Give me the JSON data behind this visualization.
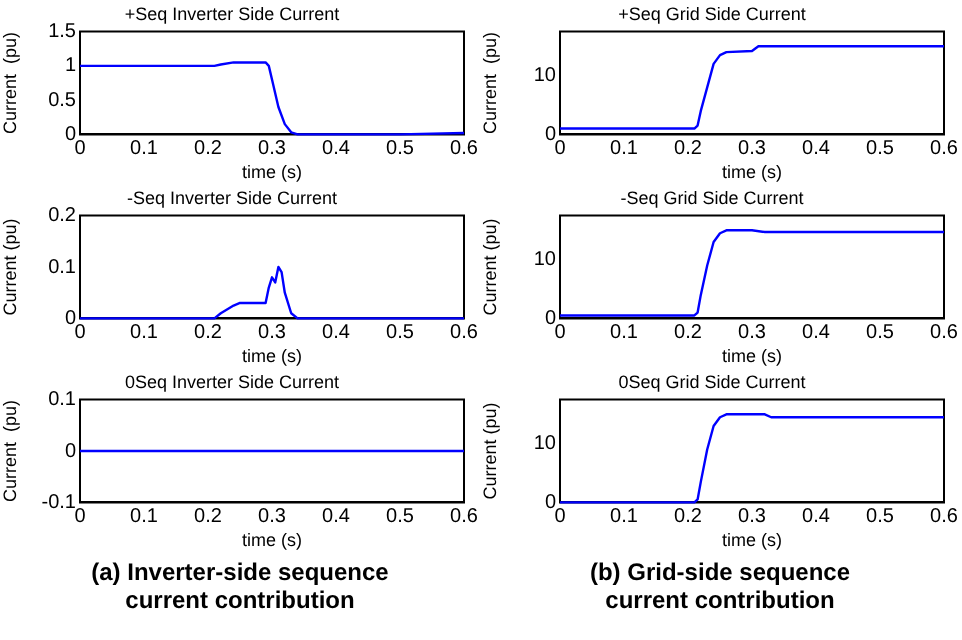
{
  "chart_data": [
    {
      "type": "line",
      "title": "+Seq Inverter Side Current",
      "xlabel": "time (s)",
      "ylabel": "Current  (pu)",
      "xlim": [
        0,
        0.6
      ],
      "xticks": [
        0,
        0.1,
        0.2,
        0.3,
        0.4,
        0.5,
        0.6
      ],
      "ylim": [
        0,
        1.5
      ],
      "yticks": [
        0,
        0.5,
        1,
        1.5
      ],
      "grid": false,
      "legend": false,
      "series": [
        {
          "color": "#0000ff",
          "x": [
            0,
            0.21,
            0.22,
            0.24,
            0.29,
            0.295,
            0.3,
            0.31,
            0.32,
            0.33,
            0.34,
            0.5,
            0.6
          ],
          "values": [
            1,
            1,
            1.02,
            1.05,
            1.05,
            1.0,
            0.8,
            0.4,
            0.15,
            0.03,
            0,
            0,
            0.02
          ]
        }
      ]
    },
    {
      "type": "line",
      "title": "+Seq Grid Side Current",
      "xlabel": "time (s)",
      "ylabel": "Current  (pu)",
      "xlim": [
        0,
        0.6
      ],
      "xticks": [
        0,
        0.1,
        0.2,
        0.3,
        0.4,
        0.5,
        0.6
      ],
      "ylim": [
        0,
        17.5
      ],
      "yticks": [
        0,
        10
      ],
      "grid": false,
      "legend": false,
      "series": [
        {
          "color": "#0000ff",
          "x": [
            0,
            0.21,
            0.215,
            0.22,
            0.23,
            0.24,
            0.25,
            0.26,
            0.3,
            0.31,
            0.6
          ],
          "values": [
            1,
            1,
            1.5,
            4,
            8,
            12,
            13.5,
            14,
            14.2,
            15,
            15
          ]
        }
      ]
    },
    {
      "type": "line",
      "title": "-Seq Inverter Side Current",
      "xlabel": "time (s)",
      "ylabel": "Current (pu)",
      "xlim": [
        0,
        0.6
      ],
      "xticks": [
        0,
        0.1,
        0.2,
        0.3,
        0.4,
        0.5,
        0.6
      ],
      "ylim": [
        0,
        0.2
      ],
      "yticks": [
        0,
        0.1,
        0.2
      ],
      "grid": false,
      "legend": false,
      "series": [
        {
          "color": "#0000ff",
          "x": [
            0,
            0.21,
            0.22,
            0.24,
            0.25,
            0.29,
            0.295,
            0.3,
            0.305,
            0.31,
            0.315,
            0.32,
            0.33,
            0.34,
            0.6
          ],
          "values": [
            0,
            0,
            0.01,
            0.025,
            0.03,
            0.03,
            0.06,
            0.08,
            0.07,
            0.1,
            0.09,
            0.05,
            0.01,
            0,
            0
          ]
        }
      ]
    },
    {
      "type": "line",
      "title": "-Seq Grid Side Current",
      "xlabel": "time (s)",
      "ylabel": "Current (pu)",
      "xlim": [
        0,
        0.6
      ],
      "xticks": [
        0,
        0.1,
        0.2,
        0.3,
        0.4,
        0.5,
        0.6
      ],
      "ylim": [
        0,
        17.5
      ],
      "yticks": [
        0,
        10
      ],
      "grid": false,
      "legend": false,
      "series": [
        {
          "color": "#0000ff",
          "x": [
            0,
            0.21,
            0.215,
            0.22,
            0.23,
            0.24,
            0.25,
            0.26,
            0.3,
            0.32,
            0.6
          ],
          "values": [
            0.5,
            0.5,
            1,
            4,
            9,
            13,
            14.5,
            15,
            15,
            14.7,
            14.7
          ]
        }
      ]
    },
    {
      "type": "line",
      "title": "0Seq Inverter Side Current",
      "xlabel": "time (s)",
      "ylabel": "Current  (pu)",
      "xlim": [
        0,
        0.6
      ],
      "xticks": [
        0,
        0.1,
        0.2,
        0.3,
        0.4,
        0.5,
        0.6
      ],
      "ylim": [
        -0.1,
        0.1
      ],
      "yticks": [
        -0.1,
        0,
        0.1
      ],
      "grid": false,
      "legend": false,
      "annotations": [
        "(a) Inverter-side sequence current contribution"
      ],
      "series": [
        {
          "color": "#0000ff",
          "x": [
            0,
            0.6
          ],
          "values": [
            0,
            0
          ]
        }
      ]
    },
    {
      "type": "line",
      "title": "0Seq Grid Side Current",
      "xlabel": "time (s)",
      "ylabel": "Current (pu)",
      "xlim": [
        0,
        0.6
      ],
      "xticks": [
        0,
        0.1,
        0.2,
        0.3,
        0.4,
        0.5,
        0.6
      ],
      "ylim": [
        0,
        17.5
      ],
      "yticks": [
        0,
        10
      ],
      "grid": false,
      "legend": false,
      "annotations": [
        "(b) Grid-side sequence current contribution"
      ],
      "series": [
        {
          "color": "#0000ff",
          "x": [
            0,
            0.21,
            0.215,
            0.22,
            0.23,
            0.24,
            0.25,
            0.26,
            0.32,
            0.33,
            0.6
          ],
          "values": [
            0,
            0,
            0.5,
            3.5,
            9,
            13,
            14.5,
            15,
            15,
            14.5,
            14.5
          ]
        }
      ]
    }
  ]
}
